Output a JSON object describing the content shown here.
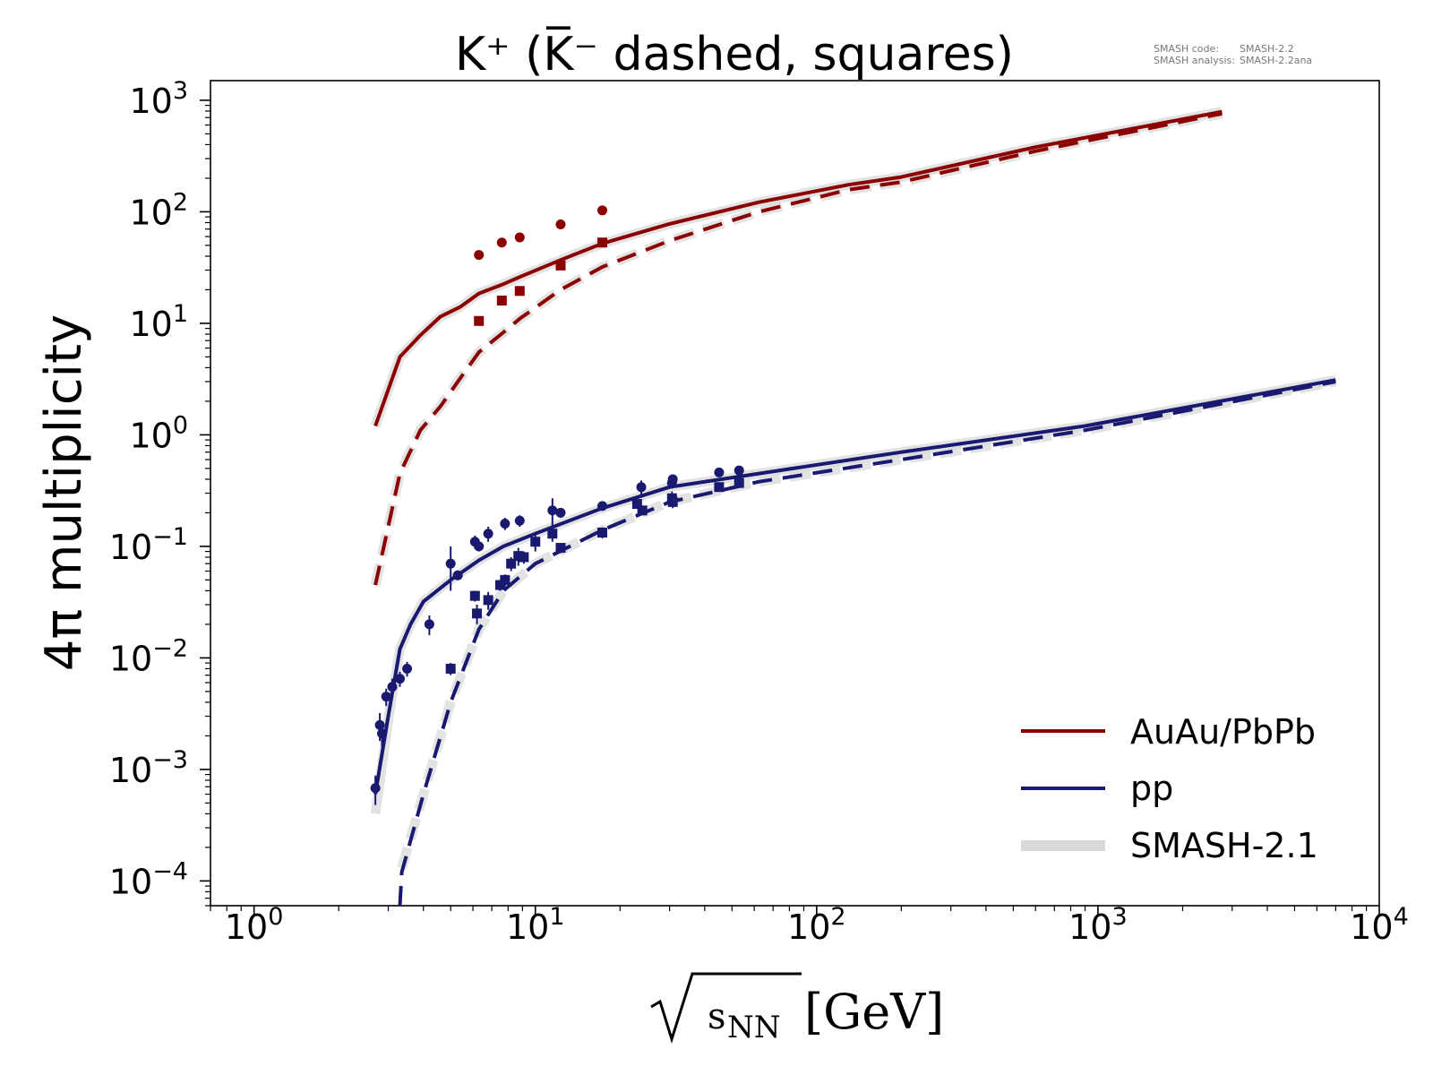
{
  "chart_data": {
    "type": "line",
    "title": "K⁺ (K̅⁻ dashed, squares)",
    "xlabel": "s",
    "xlabel_subscript": "NN",
    "xlabel_unit": "[GeV]",
    "ylabel": "4π multiplicity",
    "x_scale": "log",
    "y_scale": "log",
    "xlim": [
      0.7,
      10000
    ],
    "ylim": [
      6e-05,
      1500
    ],
    "grid": false,
    "legend_position": "lower-right",
    "x_ticks": [
      {
        "base": "10",
        "exp": "0",
        "value": 1
      },
      {
        "base": "10",
        "exp": "1",
        "value": 10
      },
      {
        "base": "10",
        "exp": "2",
        "value": 100
      },
      {
        "base": "10",
        "exp": "3",
        "value": 1000
      },
      {
        "base": "10",
        "exp": "4",
        "value": 10000
      }
    ],
    "y_ticks": [
      {
        "base": "10",
        "exp": "3",
        "value": 1000
      },
      {
        "base": "10",
        "exp": "2",
        "value": 100
      },
      {
        "base": "10",
        "exp": "1",
        "value": 10
      },
      {
        "base": "10",
        "exp": "0",
        "value": 1
      },
      {
        "base": "10",
        "exp": "−1",
        "value": 0.1
      },
      {
        "base": "10",
        "exp": "−2",
        "value": 0.01
      },
      {
        "base": "10",
        "exp": "−3",
        "value": 0.001
      },
      {
        "base": "10",
        "exp": "−4",
        "value": 0.0001
      }
    ],
    "annotation": {
      "line1_key": "SMASH code:",
      "line1_value": "SMASH-2.2",
      "line2_key": "SMASH analysis:",
      "line2_value": "SMASH-2.2ana"
    },
    "legend": [
      {
        "label": "AuAu/PbPb",
        "color": "#8b0000"
      },
      {
        "label": "pp",
        "color": "#191970"
      },
      {
        "label": "SMASH-2.1",
        "color": "#d9d9d9"
      }
    ],
    "colors": {
      "heavy": "#8b0000",
      "pp": "#191970",
      "reference": "#d9d9d9"
    },
    "series": [
      {
        "system": "AuAu/PbPb",
        "particle": "K+",
        "kind": "model",
        "style": "solid",
        "color": "#8b0000",
        "x": [
          2.7,
          3.3,
          3.9,
          4.6,
          5.4,
          6.3,
          7.7,
          8.8,
          12.3,
          17.3,
          30,
          62.4,
          130,
          200,
          600,
          2760
        ],
        "y": [
          1.2,
          5.0,
          7.8,
          11.5,
          14,
          18.5,
          22.5,
          26,
          37,
          52,
          78,
          122,
          175,
          205,
          380,
          790
        ]
      },
      {
        "system": "AuAu/PbPb",
        "particle": "K-",
        "kind": "model",
        "style": "dashed",
        "color": "#8b0000",
        "x": [
          2.7,
          3.3,
          3.9,
          4.6,
          5.4,
          6.3,
          7.7,
          8.8,
          12.3,
          17.3,
          30,
          62.4,
          130,
          200,
          600,
          2760
        ],
        "y": [
          0.045,
          0.45,
          1.1,
          1.8,
          3.2,
          5.5,
          8.3,
          11,
          20,
          32,
          55,
          100,
          158,
          185,
          350,
          760
        ]
      },
      {
        "system": "AuAu/PbPb",
        "particle": "K+",
        "kind": "reference",
        "style": "solid",
        "color": "#d9d9d9",
        "x": [
          2.7,
          3.3,
          3.9,
          4.6,
          5.4,
          6.3,
          7.7,
          8.8,
          12.3,
          17.3,
          30,
          62.4,
          130,
          200,
          600,
          2760
        ],
        "y": [
          1.2,
          5.0,
          7.8,
          11.5,
          14,
          18.5,
          22.5,
          26,
          37,
          52,
          78,
          122,
          175,
          205,
          380,
          790
        ]
      },
      {
        "system": "AuAu/PbPb",
        "particle": "K-",
        "kind": "reference",
        "style": "dashed",
        "color": "#d9d9d9",
        "x": [
          2.7,
          3.3,
          3.9,
          4.6,
          5.4,
          6.3,
          7.7,
          8.8,
          12.3,
          17.3,
          30,
          62.4,
          130,
          200,
          600,
          2760
        ],
        "y": [
          0.045,
          0.45,
          1.1,
          1.8,
          3.2,
          5.5,
          8.3,
          11,
          20,
          32,
          55,
          100,
          158,
          185,
          350,
          760
        ]
      },
      {
        "system": "pp",
        "particle": "K+",
        "kind": "model",
        "style": "solid",
        "color": "#191970",
        "x": [
          2.7,
          3.0,
          3.3,
          3.6,
          4.0,
          5.0,
          6.3,
          7.7,
          10,
          17.3,
          30,
          62.4,
          200,
          900,
          7000
        ],
        "y": [
          0.0006,
          0.003,
          0.012,
          0.02,
          0.032,
          0.05,
          0.075,
          0.1,
          0.13,
          0.22,
          0.34,
          0.45,
          0.7,
          1.2,
          3.1
        ]
      },
      {
        "system": "pp",
        "particle": "K-",
        "kind": "model",
        "style": "dashed",
        "color": "#191970",
        "x": [
          3.3,
          3.35,
          4.0,
          5.0,
          6.3,
          7.7,
          10,
          17.3,
          30,
          62.4,
          200,
          900,
          7000
        ],
        "y": [
          6e-05,
          0.00012,
          0.0006,
          0.004,
          0.018,
          0.04,
          0.07,
          0.14,
          0.25,
          0.38,
          0.6,
          1.1,
          3.0
        ]
      },
      {
        "system": "pp",
        "particle": "K+",
        "kind": "reference",
        "style": "solid",
        "color": "#d9d9d9",
        "x": [
          2.7,
          3.0,
          3.3,
          3.6,
          4.0,
          5.0,
          6.3,
          7.7,
          10,
          17.3,
          30,
          62.4,
          200,
          900,
          7000
        ],
        "y": [
          0.0004,
          0.0028,
          0.012,
          0.02,
          0.032,
          0.05,
          0.075,
          0.1,
          0.13,
          0.22,
          0.34,
          0.45,
          0.7,
          1.2,
          3.1
        ]
      },
      {
        "system": "pp",
        "particle": "K-",
        "kind": "reference",
        "style": "dashed",
        "color": "#d9d9d9",
        "x": [
          3.35,
          4.0,
          5.0,
          6.3,
          7.7,
          10,
          17.3,
          30,
          62.4,
          200,
          900,
          7000
        ],
        "y": [
          0.00013,
          0.0006,
          0.004,
          0.018,
          0.04,
          0.07,
          0.14,
          0.25,
          0.38,
          0.6,
          1.1,
          3.0
        ]
      }
    ],
    "data_points": [
      {
        "system": "AuAu/PbPb",
        "particle": "K+",
        "marker": "circle",
        "color": "#8b0000",
        "points": [
          {
            "x": 6.3,
            "y": 41
          },
          {
            "x": 7.6,
            "y": 53
          },
          {
            "x": 8.8,
            "y": 59
          },
          {
            "x": 12.3,
            "y": 77
          },
          {
            "x": 17.3,
            "y": 103
          }
        ]
      },
      {
        "system": "AuAu/PbPb",
        "particle": "K-",
        "marker": "square",
        "color": "#8b0000",
        "points": [
          {
            "x": 6.3,
            "y": 10.5
          },
          {
            "x": 7.6,
            "y": 16
          },
          {
            "x": 8.8,
            "y": 19.5
          },
          {
            "x": 12.3,
            "y": 33
          },
          {
            "x": 17.3,
            "y": 53
          }
        ]
      },
      {
        "system": "pp",
        "particle": "K+",
        "marker": "circle",
        "color": "#191970",
        "points": [
          {
            "x": 2.7,
            "y": 0.00068,
            "err": 0.0002
          },
          {
            "x": 2.8,
            "y": 0.0025,
            "err": 0.0007
          },
          {
            "x": 2.85,
            "y": 0.0021,
            "err": 0.0005
          },
          {
            "x": 2.95,
            "y": 0.0045,
            "err": 0.0008
          },
          {
            "x": 3.1,
            "y": 0.0055,
            "err": 0.001
          },
          {
            "x": 3.3,
            "y": 0.0065,
            "err": 0.001
          },
          {
            "x": 3.5,
            "y": 0.008,
            "err": 0.0012
          },
          {
            "x": 4.2,
            "y": 0.02,
            "err": 0.004
          },
          {
            "x": 5.0,
            "y": 0.07,
            "err": 0.03
          },
          {
            "x": 5.3,
            "y": 0.055,
            "err": 0.005
          },
          {
            "x": 6.1,
            "y": 0.11,
            "err": 0.015
          },
          {
            "x": 6.3,
            "y": 0.1,
            "err": 0.01
          },
          {
            "x": 6.8,
            "y": 0.13,
            "err": 0.02
          },
          {
            "x": 7.8,
            "y": 0.16,
            "err": 0.02
          },
          {
            "x": 8.8,
            "y": 0.17,
            "err": 0.02
          },
          {
            "x": 11.5,
            "y": 0.21,
            "err": 0.06
          },
          {
            "x": 12.3,
            "y": 0.2,
            "err": 0.02
          },
          {
            "x": 17.3,
            "y": 0.23,
            "err": 0.02
          },
          {
            "x": 23.8,
            "y": 0.34,
            "err": 0.05
          },
          {
            "x": 30.8,
            "y": 0.4,
            "err": 0.03
          },
          {
            "x": 30.6,
            "y": 0.37,
            "err": 0.04
          },
          {
            "x": 45,
            "y": 0.46,
            "err": 0.03
          },
          {
            "x": 53,
            "y": 0.48,
            "err": 0.03
          }
        ]
      },
      {
        "system": "pp",
        "particle": "K-",
        "marker": "square",
        "color": "#191970",
        "points": [
          {
            "x": 5.0,
            "y": 0.008,
            "err": 0.001
          },
          {
            "x": 6.1,
            "y": 0.036,
            "err": 0.004
          },
          {
            "x": 6.2,
            "y": 0.025,
            "err": 0.005
          },
          {
            "x": 6.8,
            "y": 0.033,
            "err": 0.006
          },
          {
            "x": 7.5,
            "y": 0.045,
            "err": 0.005
          },
          {
            "x": 7.8,
            "y": 0.05,
            "err": 0.006
          },
          {
            "x": 8.2,
            "y": 0.07,
            "err": 0.01
          },
          {
            "x": 8.7,
            "y": 0.082,
            "err": 0.015
          },
          {
            "x": 9.1,
            "y": 0.08,
            "err": 0.01
          },
          {
            "x": 10,
            "y": 0.11,
            "err": 0.02
          },
          {
            "x": 11.5,
            "y": 0.13,
            "err": 0.02
          },
          {
            "x": 12.3,
            "y": 0.097,
            "err": 0.01
          },
          {
            "x": 17.3,
            "y": 0.133,
            "err": 0.015
          },
          {
            "x": 23,
            "y": 0.24,
            "err": 0.02
          },
          {
            "x": 24,
            "y": 0.21,
            "err": 0.02
          },
          {
            "x": 30.6,
            "y": 0.27,
            "err": 0.04
          },
          {
            "x": 30.8,
            "y": 0.25,
            "err": 0.03
          },
          {
            "x": 45,
            "y": 0.34,
            "err": 0.02
          },
          {
            "x": 53,
            "y": 0.37,
            "err": 0.02
          }
        ]
      }
    ]
  }
}
